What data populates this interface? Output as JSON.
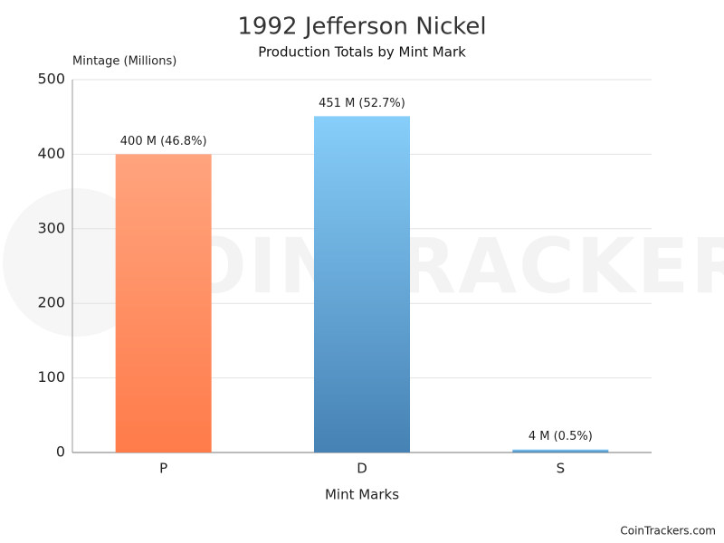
{
  "chart_data": {
    "type": "bar",
    "title": "1992 Jefferson Nickel",
    "subtitle": "Production Totals by Mint Mark",
    "y_label": "Mintage (Millions)",
    "x_label": "Mint Marks",
    "watermark": "COINTRACKERS",
    "footer": "CoinTrackers.com",
    "categories": [
      "P",
      "D",
      "S"
    ],
    "values": [
      400,
      451,
      4
    ],
    "value_labels": [
      "400 M (46.8%)",
      "451 M (52.7%)",
      "4 M (0.5%)"
    ],
    "colors": [
      {
        "top": "#ffa47e",
        "bottom": "#ff7b4a"
      },
      {
        "top": "#87cefa",
        "bottom": "#4682b4"
      },
      {
        "top": "#87cefa",
        "bottom": "#4682b4"
      }
    ],
    "ylim": [
      0,
      500
    ],
    "yticks": [
      0,
      100,
      200,
      300,
      400,
      500
    ],
    "grid": true
  }
}
